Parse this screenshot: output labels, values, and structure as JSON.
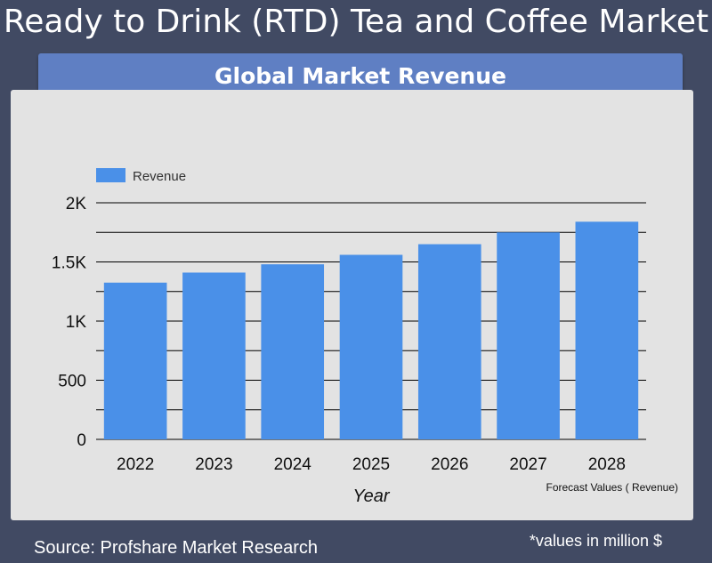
{
  "header": {
    "title": "Ready to Drink (RTD) Tea and Coffee Market",
    "subtitle": "Global Market Revenue"
  },
  "footer": {
    "source": "Source: Profshare Market Research",
    "units_note": "*values in million $"
  },
  "chart_data": {
    "type": "bar",
    "title": "Global Market Revenue",
    "categories": [
      "2022",
      "2023",
      "2024",
      "2025",
      "2026",
      "2027",
      "2028"
    ],
    "series": [
      {
        "name": "Revenue",
        "values": [
          1325,
          1410,
          1480,
          1560,
          1650,
          1750,
          1840
        ]
      }
    ],
    "xlabel": "Year",
    "ylabel": "",
    "ylim": [
      0,
      2000
    ],
    "y_ticks": [
      0,
      500,
      1000,
      1500,
      2000
    ],
    "y_tick_labels": [
      "0",
      "500",
      "1K",
      "1.5K",
      "2K"
    ],
    "grid": true,
    "legend_position": "top-left",
    "annotation": "Forecast Values ( Revenue)",
    "colors": {
      "bar": "#4a90e8",
      "grid": "#000000",
      "background": "#e3e3e3"
    }
  }
}
